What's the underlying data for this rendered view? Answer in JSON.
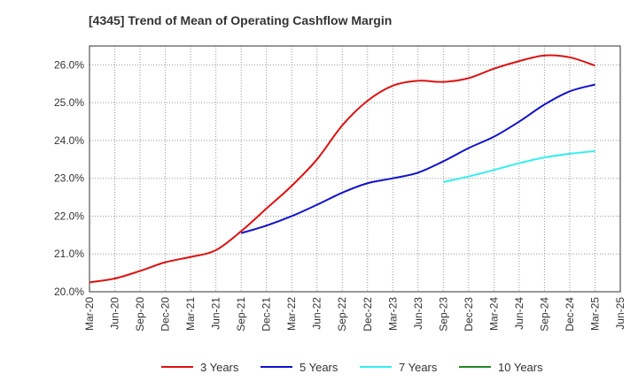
{
  "chart_data": {
    "type": "line",
    "title": "[4345]  Trend of Mean of Operating Cashflow Margin",
    "xlabel": "",
    "ylabel": "",
    "ylim": [
      20.0,
      26.5
    ],
    "y_ticks": [
      "20.0%",
      "21.0%",
      "22.0%",
      "23.0%",
      "24.0%",
      "25.0%",
      "26.0%"
    ],
    "y_tick_values": [
      20.0,
      21.0,
      22.0,
      23.0,
      24.0,
      25.0,
      26.0
    ],
    "x_ticks": [
      "Mar-20",
      "Jun-20",
      "Sep-20",
      "Dec-20",
      "Mar-21",
      "Jun-21",
      "Sep-21",
      "Dec-21",
      "Mar-22",
      "Jun-22",
      "Sep-22",
      "Dec-22",
      "Mar-23",
      "Jun-23",
      "Sep-23",
      "Dec-23",
      "Mar-24",
      "Jun-24",
      "Sep-24",
      "Dec-24",
      "Mar-25",
      "Jun-25"
    ],
    "grid": true,
    "legend_position": "bottom",
    "series": [
      {
        "name": "3 Years",
        "color": "#dd1111",
        "points": [
          [
            0,
            20.25
          ],
          [
            1,
            20.35
          ],
          [
            2,
            20.55
          ],
          [
            3,
            20.78
          ],
          [
            4,
            20.92
          ],
          [
            5,
            21.1
          ],
          [
            6,
            21.6
          ],
          [
            7,
            22.2
          ],
          [
            8,
            22.8
          ],
          [
            9,
            23.5
          ],
          [
            10,
            24.4
          ],
          [
            11,
            25.05
          ],
          [
            12,
            25.45
          ],
          [
            13,
            25.58
          ],
          [
            14,
            25.55
          ],
          [
            15,
            25.65
          ],
          [
            16,
            25.9
          ],
          [
            17,
            26.1
          ],
          [
            18,
            26.25
          ],
          [
            19,
            26.2
          ],
          [
            20,
            25.98
          ]
        ]
      },
      {
        "name": "5 Years",
        "color": "#1111cc",
        "points": [
          [
            6,
            21.55
          ],
          [
            7,
            21.75
          ],
          [
            8,
            22.0
          ],
          [
            9,
            22.3
          ],
          [
            10,
            22.62
          ],
          [
            11,
            22.87
          ],
          [
            12,
            23.0
          ],
          [
            13,
            23.15
          ],
          [
            14,
            23.45
          ],
          [
            15,
            23.8
          ],
          [
            16,
            24.1
          ],
          [
            17,
            24.5
          ],
          [
            18,
            24.95
          ],
          [
            19,
            25.3
          ],
          [
            20,
            25.48
          ]
        ]
      },
      {
        "name": "7 Years",
        "color": "#33eeee",
        "points": [
          [
            14,
            22.9
          ],
          [
            15,
            23.05
          ],
          [
            16,
            23.22
          ],
          [
            17,
            23.4
          ],
          [
            18,
            23.55
          ],
          [
            19,
            23.65
          ],
          [
            20,
            23.72
          ]
        ]
      },
      {
        "name": "10 Years",
        "color": "#228822",
        "points": []
      }
    ]
  }
}
